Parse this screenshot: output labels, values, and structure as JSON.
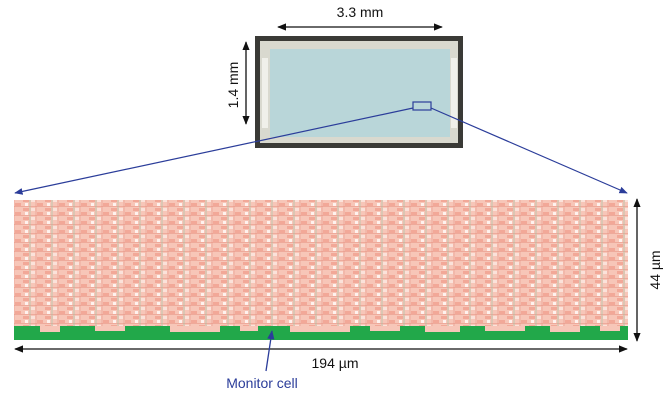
{
  "chip": {
    "width_label": "3.3 mm",
    "height_label": "1.4 mm"
  },
  "layout": {
    "width_label": "194 µm",
    "height_label": "44 µm",
    "callout": "Monitor cell"
  }
}
